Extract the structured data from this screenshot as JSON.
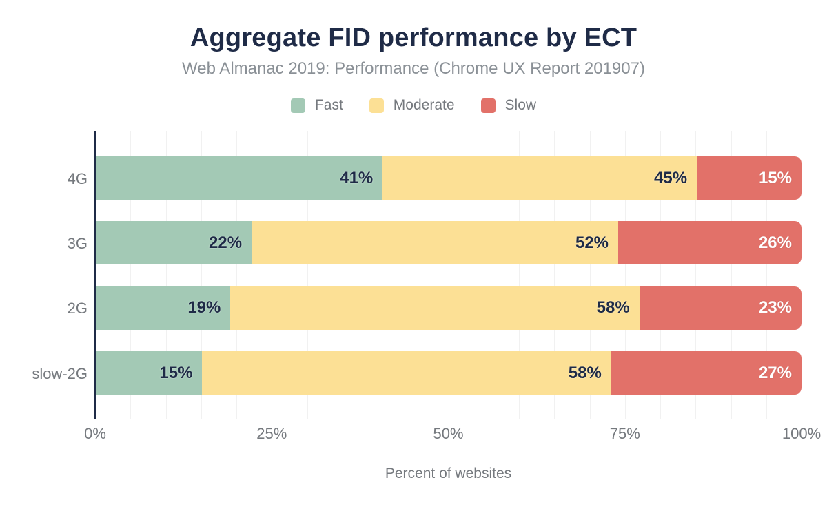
{
  "header": {
    "title": "Aggregate FID performance by ECT",
    "subtitle": "Web Almanac 2019: Performance (Chrome UX Report 201907)"
  },
  "chart_data": {
    "type": "bar",
    "orientation": "horizontal",
    "stacked": true,
    "title": "Aggregate FID performance by ECT",
    "subtitle": "Web Almanac 2019: Performance (Chrome UX Report 201907)",
    "categories": [
      "4G",
      "3G",
      "2G",
      "slow-2G"
    ],
    "series": [
      {
        "name": "Fast",
        "color": "#a3c9b5",
        "label_style": "dark",
        "values": [
          41,
          22,
          19,
          15
        ]
      },
      {
        "name": "Moderate",
        "color": "#fce095",
        "label_style": "dark",
        "values": [
          45,
          52,
          58,
          58
        ]
      },
      {
        "name": "Slow",
        "color": "#e27169",
        "label_style": "light",
        "values": [
          15,
          26,
          23,
          27
        ]
      }
    ],
    "value_suffix": "%",
    "xlabel": "Percent of websites",
    "x_ticks": [
      "0%",
      "25%",
      "50%",
      "75%",
      "100%"
    ],
    "xlim": [
      0,
      100
    ],
    "grid": "vertical lines every 5%, light gray",
    "legend_position": "top-center"
  },
  "colors": {
    "title_navy": "#1f2b47",
    "axis_line": "#1f2b47",
    "muted_text": "#75797e",
    "subtitle_text": "#8a9096",
    "gridline": "#f1f1f1",
    "fast_green": "#a3c9b5",
    "moderate_yellow": "#fce095",
    "slow_red": "#e27169",
    "background": "#ffffff"
  }
}
